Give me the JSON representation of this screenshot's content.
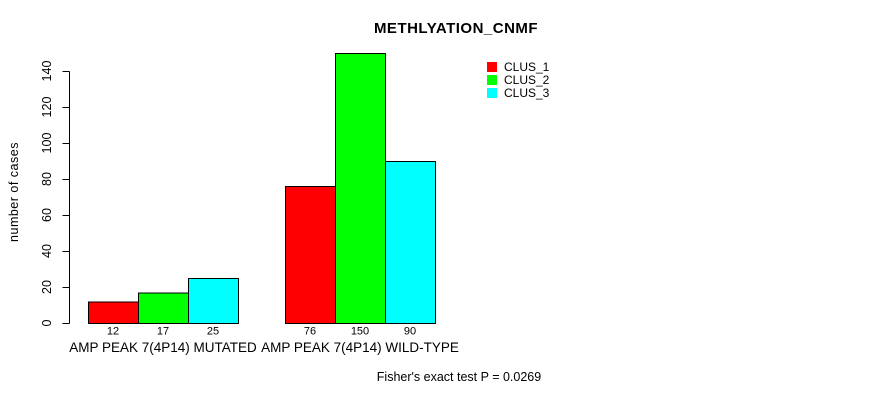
{
  "chart_data": {
    "type": "bar",
    "title": "METHLYATION_CNMF",
    "ylabel": "number of cases",
    "xlabel": "",
    "annotation": "Fisher's exact test P = 0.0269",
    "categories": [
      "AMP PEAK  7(4P14) MUTATED",
      "AMP PEAK  7(4P14) WILD-TYPE"
    ],
    "series": [
      {
        "name": "CLUS_1",
        "color": "#ff0000",
        "values": [
          12,
          76
        ]
      },
      {
        "name": "CLUS_2",
        "color": "#00ff00",
        "values": [
          17,
          150
        ]
      },
      {
        "name": "CLUS_3",
        "color": "#00ffff",
        "values": [
          25,
          90
        ]
      }
    ],
    "yticks": [
      0,
      20,
      40,
      60,
      80,
      100,
      120,
      140
    ],
    "ylim": [
      0,
      150
    ],
    "bar_value_labels": [
      [
        12,
        17,
        25
      ],
      [
        76,
        150,
        90
      ]
    ],
    "grid": false,
    "legend_position": "top-right",
    "bar_border_color": "#000000",
    "axis_color": "#000000",
    "background_color": "#ffffff"
  }
}
